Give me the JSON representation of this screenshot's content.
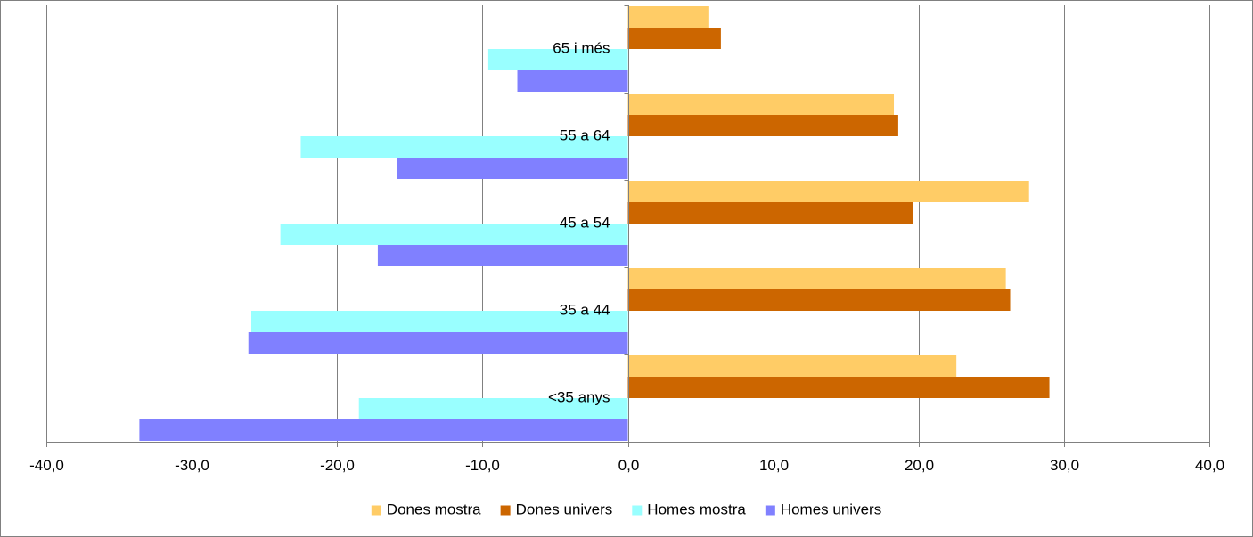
{
  "chart_data": {
    "type": "bar",
    "orientation": "horizontal",
    "categories": [
      "65 i més",
      "55 a 64",
      "45 a 54",
      "35 a 44",
      "<35 anys"
    ],
    "series": [
      {
        "name": "Dones mostra",
        "color": "#FFCC66",
        "values": [
          5.6,
          18.3,
          27.6,
          26.0,
          22.6
        ]
      },
      {
        "name": "Dones univers",
        "color": "#CC6600",
        "values": [
          6.4,
          18.6,
          19.6,
          26.3,
          29.0
        ]
      },
      {
        "name": "Homes mostra",
        "color": "#99FFFF",
        "values": [
          -9.6,
          -22.5,
          -23.9,
          -25.9,
          -18.5
        ]
      },
      {
        "name": "Homes univers",
        "color": "#8080FF",
        "values": [
          -7.6,
          -15.9,
          -17.2,
          -26.1,
          -33.6
        ]
      }
    ],
    "xlim": [
      -40,
      40
    ],
    "xticks": [
      -40,
      -30,
      -20,
      -10,
      0,
      10,
      20,
      30,
      40
    ],
    "xtick_labels": [
      "-40,0",
      "-30,0",
      "-20,0",
      "-10,0",
      "0,0",
      "10,0",
      "20,0",
      "30,0",
      "40,0"
    ],
    "grid": true,
    "legend_position": "bottom"
  }
}
